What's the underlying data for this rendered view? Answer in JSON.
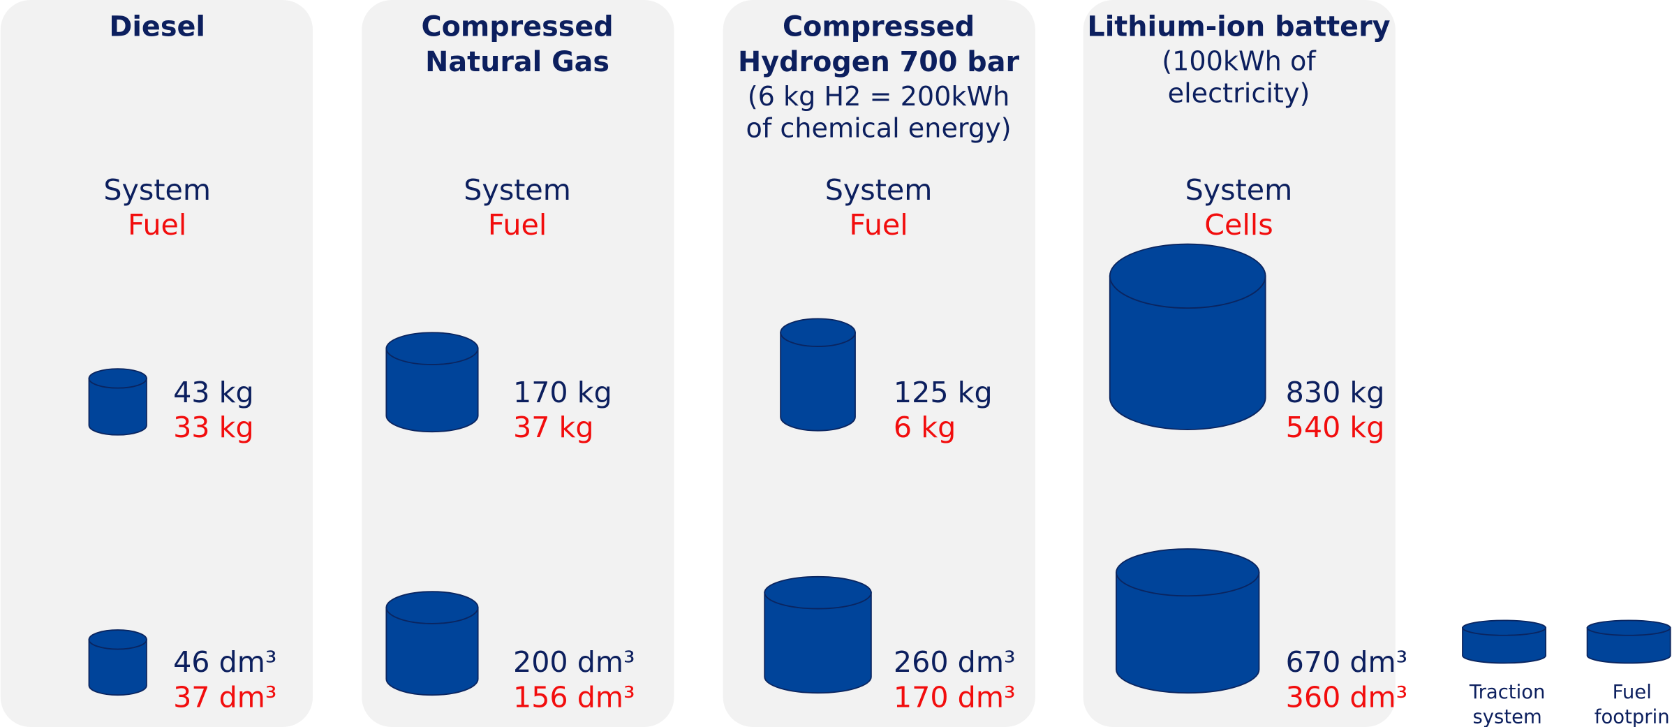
{
  "panels": [
    {
      "title": [
        "Diesel"
      ],
      "system_label": "System",
      "fuel_label": "Fuel",
      "mass_system": "43 kg",
      "mass_fuel": "33 kg",
      "volume_system": "46 dm³",
      "volume_fuel": "37 dm³"
    },
    {
      "title": [
        "Compressed",
        "Natural Gas"
      ],
      "system_label": "System",
      "fuel_label": "Fuel",
      "mass_system": "170 kg",
      "mass_fuel": "37 kg",
      "volume_system": "200 dm³",
      "volume_fuel": "156 dm³"
    },
    {
      "title": [
        "Compressed",
        "Hydrogen 700 bar"
      ],
      "subtitle": [
        "(6 kg H2 = 200kWh",
        "of chemical energy)"
      ],
      "system_label": "System",
      "fuel_label": "Fuel",
      "mass_system": "125 kg",
      "mass_fuel": "6 kg",
      "volume_system": "260 dm³",
      "volume_fuel": "170 dm³"
    },
    {
      "title": [
        "Lithium-ion battery"
      ],
      "subtitle": [
        "(100kWh of",
        "electricity)"
      ],
      "system_label": "System",
      "fuel_label": "Cells",
      "mass_system": "830 kg",
      "mass_fuel": "540 kg",
      "volume_system": "670 dm³",
      "volume_fuel": "360 dm³"
    }
  ],
  "legend": [
    {
      "label": [
        "Traction",
        "system"
      ]
    },
    {
      "label": [
        "Fuel",
        "footprin"
      ]
    }
  ]
}
